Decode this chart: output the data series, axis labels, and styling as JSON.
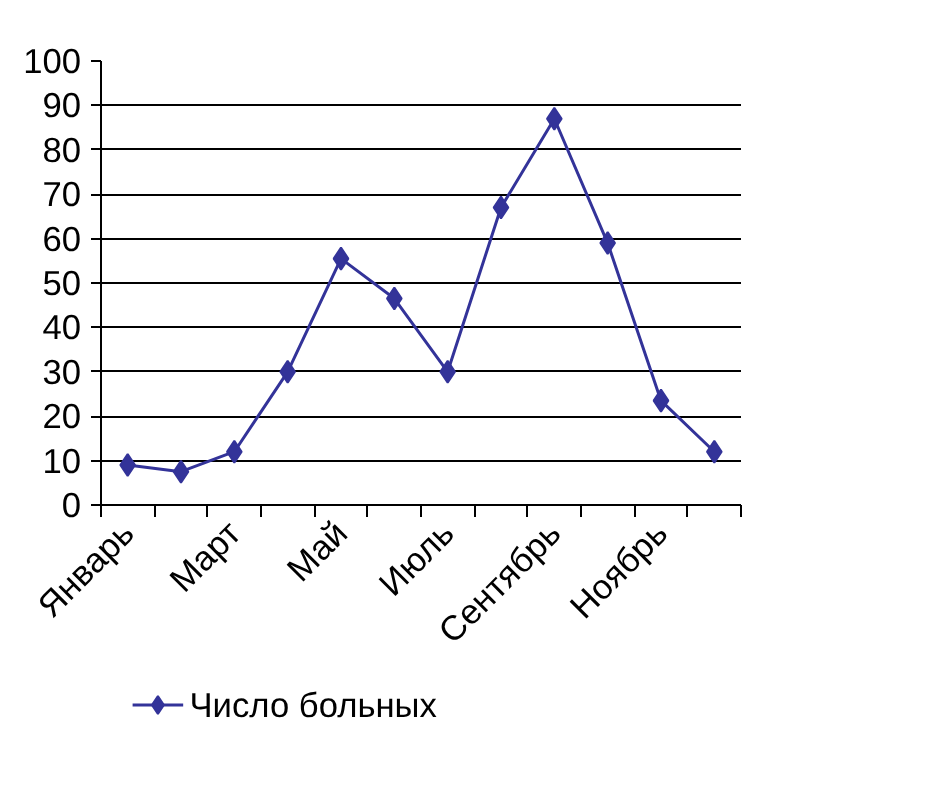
{
  "chart_data": {
    "type": "line",
    "categories": [
      "Январь",
      null,
      "Март",
      null,
      "Май",
      null,
      "Июль",
      null,
      "Сентябрь",
      null,
      "Ноябрь",
      null
    ],
    "series": [
      {
        "name": "Число больных",
        "color": "#333399",
        "values": [
          9,
          7.5,
          12,
          30,
          55.5,
          46.5,
          30,
          67,
          87,
          59,
          23.5,
          12
        ]
      }
    ],
    "ylim": [
      0,
      100
    ],
    "yticks": [
      0,
      10,
      20,
      30,
      40,
      50,
      60,
      70,
      80,
      90,
      100
    ],
    "grid": "y",
    "legend": "bottom",
    "marker": "diamond",
    "line_style": "solid"
  }
}
